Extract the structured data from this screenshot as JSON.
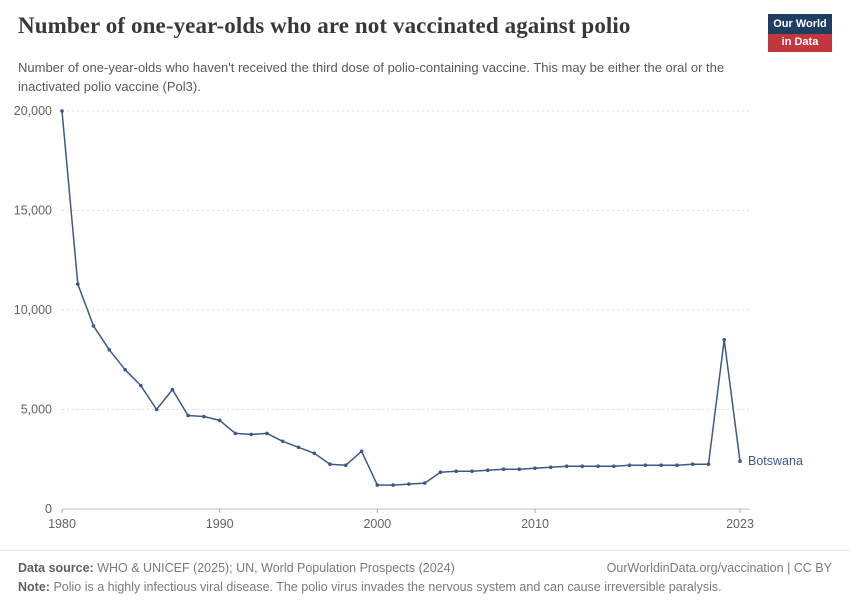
{
  "header": {
    "title": "Number of one-year-olds who are not vaccinated against polio",
    "subtitle": "Number of one-year-olds who haven't received the third dose of polio-containing vaccine. This may be either the oral or the inactivated polio vaccine (Pol3)."
  },
  "logo": {
    "line1": "Our World",
    "line2": "in Data",
    "bg_color": "#1d3d63",
    "accent_color": "#c0383d"
  },
  "chart_data": {
    "type": "line",
    "title": "Number of one-year-olds who are not vaccinated against polio",
    "entity": "Botswana",
    "line_color": "#3d5a87",
    "grid": "dashed horizontal gridlines, legend as end-of-line label",
    "ylim": [
      0,
      20000
    ],
    "yticks": [
      0,
      5000,
      10000,
      15000,
      20000
    ],
    "xticks": [
      1980,
      1990,
      2000,
      2010,
      2023
    ],
    "years": [
      1980,
      1981,
      1982,
      1983,
      1984,
      1985,
      1986,
      1987,
      1988,
      1989,
      1990,
      1991,
      1992,
      1993,
      1994,
      1995,
      1996,
      1997,
      1998,
      1999,
      2000,
      2001,
      2002,
      2003,
      2004,
      2005,
      2006,
      2007,
      2008,
      2009,
      2010,
      2011,
      2012,
      2013,
      2014,
      2015,
      2016,
      2017,
      2018,
      2019,
      2020,
      2021,
      2022,
      2023
    ],
    "values": [
      20000,
      11300,
      9200,
      8000,
      7000,
      6200,
      5000,
      6000,
      4700,
      4650,
      4450,
      3800,
      3750,
      3800,
      3400,
      3100,
      2800,
      2250,
      2200,
      2900,
      1200,
      1200,
      1250,
      1300,
      1850,
      1900,
      1900,
      1950,
      2000,
      2000,
      2050,
      2100,
      2150,
      2150,
      2150,
      2150,
      2200,
      2200,
      2200,
      2200,
      2250,
      2250,
      8500,
      2400
    ]
  },
  "footer": {
    "data_source_label": "Data source:",
    "data_source_text": "WHO & UNICEF (2025); UN, World Population Prospects (2024)",
    "attribution": "OurWorldinData.org/vaccination | CC BY",
    "note_label": "Note:",
    "note_text": "Polio is a highly infectious viral disease. The polio virus invades the nervous system and can cause irreversible paralysis."
  }
}
